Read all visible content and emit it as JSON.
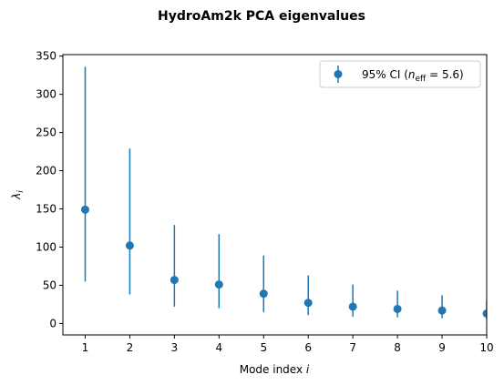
{
  "chart_data": {
    "type": "scatter",
    "title": "HydroAm2k PCA eigenvalues",
    "xlabel": "Mode index",
    "xlabel_var": "i",
    "ylabel_var": "λ",
    "ylabel_sub": "i",
    "xlim": [
      0.5,
      10
    ],
    "ylim": [
      -15,
      352
    ],
    "xticks": [
      1,
      2,
      3,
      4,
      5,
      6,
      7,
      8,
      9,
      10
    ],
    "yticks": [
      0,
      50,
      100,
      150,
      200,
      250,
      300,
      350
    ],
    "grid": false,
    "legend_position": "top-right",
    "series": [
      {
        "name": "95% CI (n_eff = 5.6)",
        "legend_prefix": "95% CI (",
        "legend_var": "n",
        "legend_sub": "eff",
        "legend_suffix": " = 5.6)",
        "color": "#1f77b4",
        "x": [
          1,
          2,
          3,
          4,
          5,
          6,
          7,
          8,
          9,
          10
        ],
        "y": [
          149,
          102,
          57,
          51,
          39,
          27,
          22,
          19,
          17,
          13
        ],
        "ci_low": [
          55,
          38,
          22,
          20,
          15,
          11,
          9,
          8,
          7,
          6
        ],
        "ci_high": [
          336,
          229,
          129,
          117,
          89,
          63,
          51,
          43,
          37,
          30
        ]
      }
    ]
  }
}
